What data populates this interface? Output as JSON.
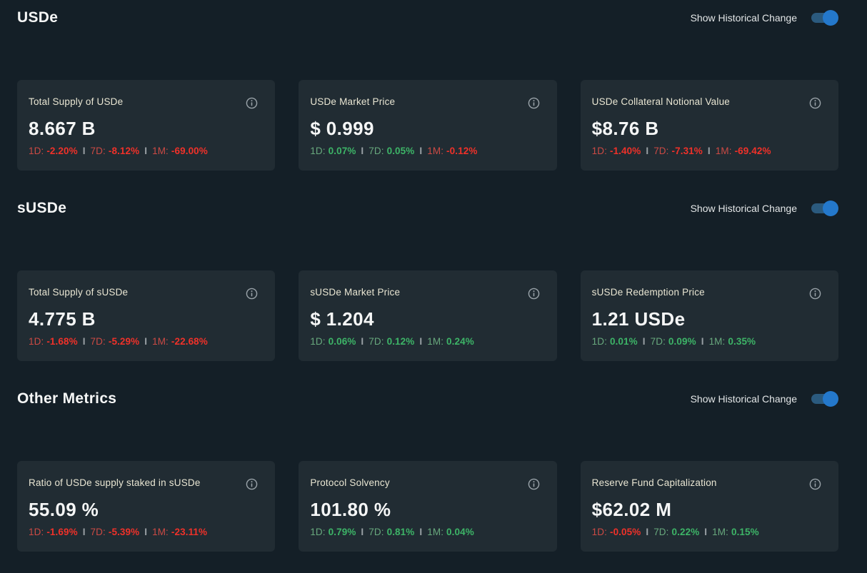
{
  "colors": {
    "page_bg": "#141f27",
    "card_bg": "#212c33",
    "card_title": "#e9e6d3",
    "positive": "#3db467",
    "positive_label": "#68a87d",
    "negative": "#ef3129",
    "negative_label": "#cc4a44",
    "toggle_thumb": "#2478cb",
    "toggle_track": "#2b5a7e",
    "info_icon": "#9aa3a9",
    "separator": "#99a0a5"
  },
  "toggle": {
    "label": "Show Historical Change"
  },
  "separator": "I",
  "sections": [
    {
      "title": "USDe",
      "toggle_state": "on",
      "cards": [
        {
          "title": "Total Supply of USDe",
          "value": "8.667 B",
          "changes": [
            {
              "label": "1D:",
              "value": "-2.20%",
              "dir": "down"
            },
            {
              "label": "7D:",
              "value": "-8.12%",
              "dir": "down"
            },
            {
              "label": "1M:",
              "value": "-69.00%",
              "dir": "down"
            }
          ]
        },
        {
          "title": "USDe Market Price",
          "value": "$ 0.999",
          "changes": [
            {
              "label": "1D:",
              "value": "0.07%",
              "dir": "up"
            },
            {
              "label": "7D:",
              "value": "0.05%",
              "dir": "up"
            },
            {
              "label": "1M:",
              "value": "-0.12%",
              "dir": "down"
            }
          ]
        },
        {
          "title": "USDe Collateral Notional Value",
          "value": "$8.76 B",
          "changes": [
            {
              "label": "1D:",
              "value": "-1.40%",
              "dir": "down"
            },
            {
              "label": "7D:",
              "value": "-7.31%",
              "dir": "down"
            },
            {
              "label": "1M:",
              "value": "-69.42%",
              "dir": "down"
            }
          ]
        }
      ]
    },
    {
      "title": "sUSDe",
      "toggle_state": "on",
      "cards": [
        {
          "title": "Total Supply of sUSDe",
          "value": "4.775 B",
          "changes": [
            {
              "label": "1D:",
              "value": "-1.68%",
              "dir": "down"
            },
            {
              "label": "7D:",
              "value": "-5.29%",
              "dir": "down"
            },
            {
              "label": "1M:",
              "value": "-22.68%",
              "dir": "down"
            }
          ]
        },
        {
          "title": "sUSDe Market Price",
          "value": "$ 1.204",
          "changes": [
            {
              "label": "1D:",
              "value": "0.06%",
              "dir": "up"
            },
            {
              "label": "7D:",
              "value": "0.12%",
              "dir": "up"
            },
            {
              "label": "1M:",
              "value": "0.24%",
              "dir": "up"
            }
          ]
        },
        {
          "title": "sUSDe Redemption Price",
          "value": "1.21 USDe",
          "changes": [
            {
              "label": "1D:",
              "value": "0.01%",
              "dir": "up"
            },
            {
              "label": "7D:",
              "value": "0.09%",
              "dir": "up"
            },
            {
              "label": "1M:",
              "value": "0.35%",
              "dir": "up"
            }
          ]
        }
      ]
    },
    {
      "title": "Other Metrics",
      "toggle_state": "on",
      "cards": [
        {
          "title": "Ratio of USDe supply staked in sUSDe",
          "value": "55.09 %",
          "changes": [
            {
              "label": "1D:",
              "value": "-1.69%",
              "dir": "down"
            },
            {
              "label": "7D:",
              "value": "-5.39%",
              "dir": "down"
            },
            {
              "label": "1M:",
              "value": "-23.11%",
              "dir": "down"
            }
          ]
        },
        {
          "title": "Protocol Solvency",
          "value": "101.80 %",
          "changes": [
            {
              "label": "1D:",
              "value": "0.79%",
              "dir": "up"
            },
            {
              "label": "7D:",
              "value": "0.81%",
              "dir": "up"
            },
            {
              "label": "1M:",
              "value": "0.04%",
              "dir": "up"
            }
          ]
        },
        {
          "title": "Reserve Fund Capitalization",
          "value": "$62.02 M",
          "changes": [
            {
              "label": "1D:",
              "value": "-0.05%",
              "dir": "down"
            },
            {
              "label": "7D:",
              "value": "0.22%",
              "dir": "up"
            },
            {
              "label": "1M:",
              "value": "0.15%",
              "dir": "up"
            }
          ]
        }
      ]
    }
  ]
}
